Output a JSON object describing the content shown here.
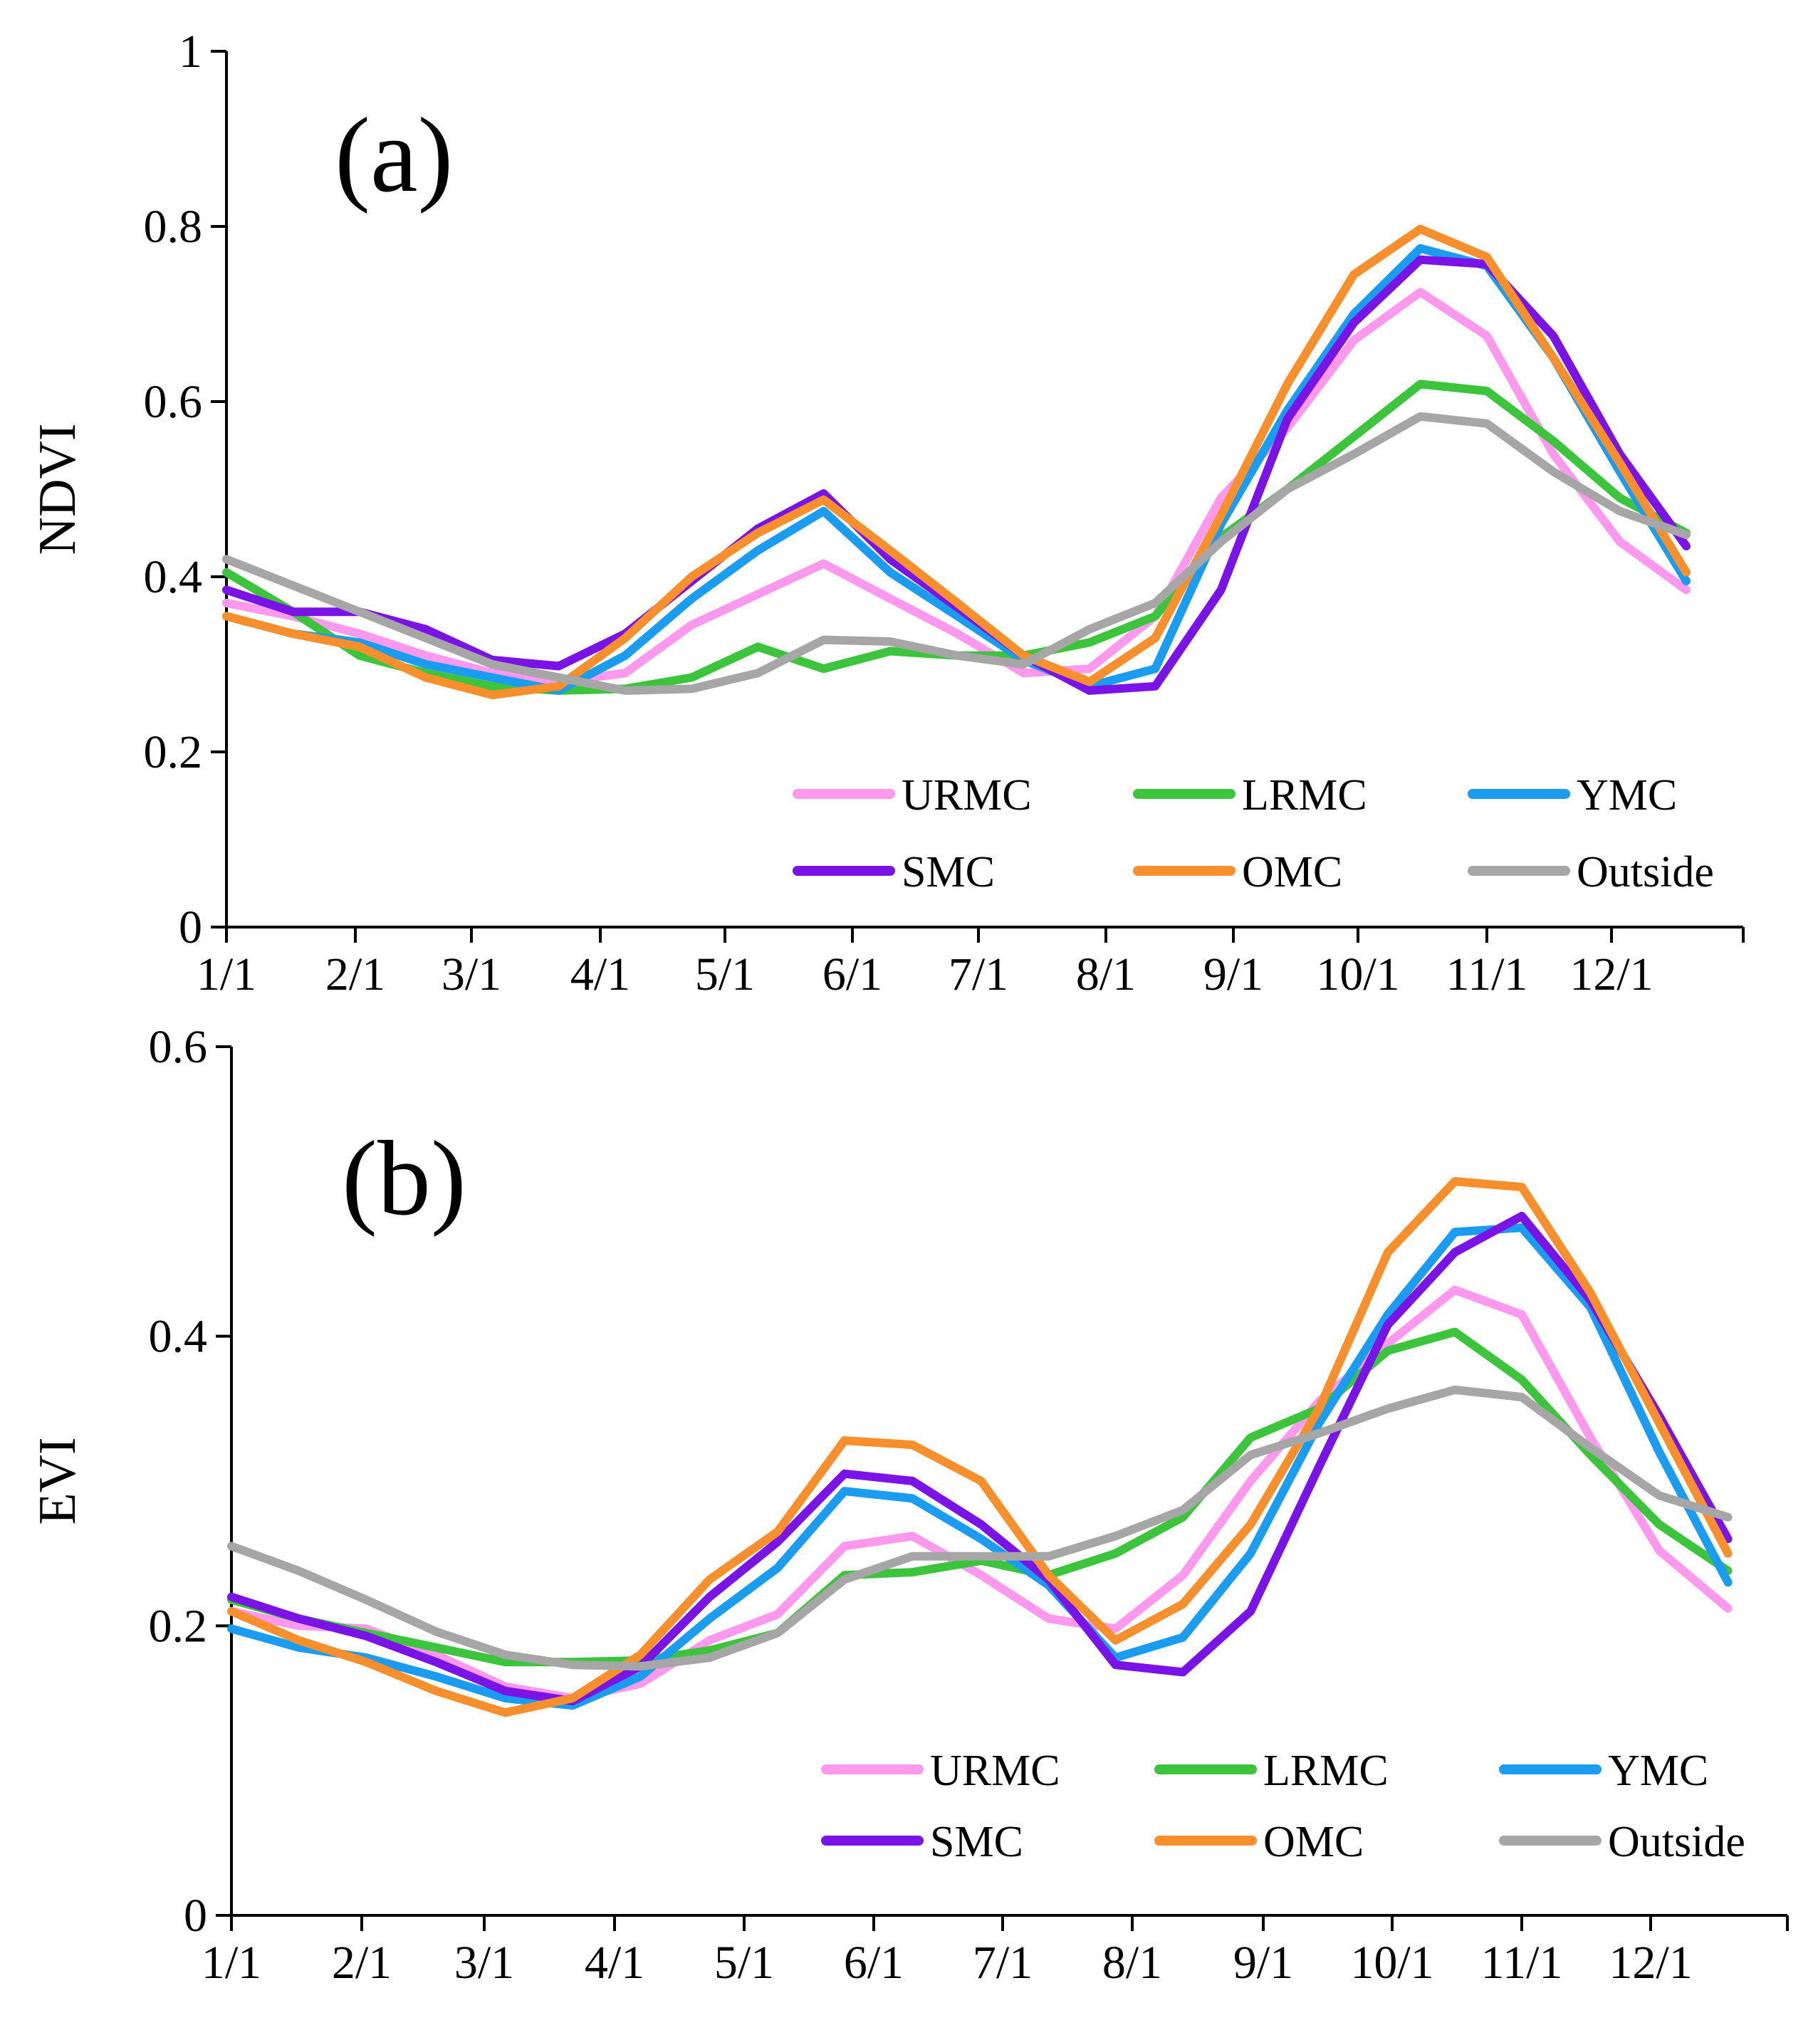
{
  "chart_data": [
    {
      "type": "line",
      "panel_label": "(a)",
      "ylabel": "NDVI",
      "xlabel": "",
      "ylim": [
        0,
        1
      ],
      "yticks": [
        "0",
        "0.2",
        "0.4",
        "0.6",
        "0.8",
        "1"
      ],
      "yticks_values": [
        0,
        0.2,
        0.4,
        0.6,
        0.8,
        1
      ],
      "xticks": [
        "1/1",
        "2/1",
        "3/1",
        "4/1",
        "5/1",
        "6/1",
        "7/1",
        "8/1",
        "9/1",
        "10/1",
        "11/1",
        "12/1"
      ],
      "x_day_of_year": [
        1,
        17,
        33,
        49,
        65,
        81,
        97,
        113,
        129,
        145,
        161,
        177,
        193,
        209,
        225,
        241,
        257,
        273,
        289,
        305,
        321,
        337,
        353
      ],
      "legend_position": "bottom-right",
      "grid": false,
      "series": [
        {
          "name": "URMC",
          "color": "#ff99ee",
          "values": [
            0.37,
            0.355,
            0.335,
            0.31,
            0.29,
            0.28,
            0.29,
            0.345,
            0.38,
            0.415,
            0.375,
            0.335,
            0.29,
            0.295,
            0.355,
            0.49,
            0.57,
            0.67,
            0.725,
            0.675,
            0.54,
            0.44,
            0.385
          ]
        },
        {
          "name": "LRMC",
          "color": "#3dc43d",
          "values": [
            0.405,
            0.36,
            0.31,
            0.29,
            0.275,
            0.27,
            0.272,
            0.285,
            0.32,
            0.295,
            0.315,
            0.31,
            0.31,
            0.325,
            0.355,
            0.445,
            0.5,
            0.56,
            0.62,
            0.612,
            0.555,
            0.49,
            0.45
          ]
        },
        {
          "name": "YMC",
          "color": "#1a9cf0",
          "values": [
            0.355,
            0.335,
            0.325,
            0.3,
            0.285,
            0.27,
            0.31,
            0.375,
            0.43,
            0.475,
            0.405,
            0.355,
            0.305,
            0.275,
            0.295,
            0.46,
            0.59,
            0.7,
            0.775,
            0.755,
            0.65,
            0.52,
            0.395
          ]
        },
        {
          "name": "SMC",
          "color": "#7a14e6",
          "values": [
            0.385,
            0.36,
            0.36,
            0.34,
            0.305,
            0.298,
            0.335,
            0.395,
            0.455,
            0.495,
            0.42,
            0.365,
            0.31,
            0.27,
            0.275,
            0.385,
            0.58,
            0.69,
            0.762,
            0.757,
            0.675,
            0.54,
            0.435
          ]
        },
        {
          "name": "OMC",
          "color": "#f7902c",
          "values": [
            0.355,
            0.335,
            0.32,
            0.285,
            0.265,
            0.275,
            0.33,
            0.4,
            0.45,
            0.488,
            0.43,
            0.37,
            0.31,
            0.28,
            0.33,
            0.47,
            0.62,
            0.745,
            0.797,
            0.765,
            0.65,
            0.53,
            0.405
          ]
        },
        {
          "name": "Outside",
          "color": "#a6a6a6",
          "values": [
            0.42,
            0.39,
            0.36,
            0.33,
            0.3,
            0.285,
            0.27,
            0.272,
            0.29,
            0.328,
            0.326,
            0.31,
            0.3,
            0.34,
            0.37,
            0.44,
            0.5,
            0.54,
            0.583,
            0.575,
            0.52,
            0.475,
            0.448
          ]
        }
      ]
    },
    {
      "type": "line",
      "panel_label": "(b)",
      "ylabel": "EVI",
      "xlabel": "",
      "ylim": [
        0,
        0.6
      ],
      "yticks": [
        "0",
        "0.2",
        "0.4",
        "0.6"
      ],
      "yticks_values": [
        0,
        0.2,
        0.4,
        0.6
      ],
      "xticks": [
        "1/1",
        "2/1",
        "3/1",
        "4/1",
        "5/1",
        "6/1",
        "7/1",
        "8/1",
        "9/1",
        "10/1",
        "11/1",
        "12/1"
      ],
      "x_day_of_year": [
        1,
        17,
        33,
        49,
        65,
        81,
        97,
        113,
        129,
        145,
        161,
        177,
        193,
        209,
        225,
        241,
        257,
        273,
        289,
        305,
        321,
        337,
        353
      ],
      "legend_position": "bottom-right",
      "grid": false,
      "series": [
        {
          "name": "URMC",
          "color": "#ff99ee",
          "values": [
            0.21,
            0.2,
            0.198,
            0.18,
            0.158,
            0.15,
            0.16,
            0.19,
            0.208,
            0.255,
            0.262,
            0.235,
            0.205,
            0.198,
            0.235,
            0.3,
            0.355,
            0.395,
            0.432,
            0.415,
            0.33,
            0.252,
            0.212
          ]
        },
        {
          "name": "LRMC",
          "color": "#3dc43d",
          "values": [
            0.218,
            0.205,
            0.195,
            0.185,
            0.175,
            0.175,
            0.176,
            0.183,
            0.195,
            0.235,
            0.237,
            0.245,
            0.235,
            0.25,
            0.275,
            0.33,
            0.35,
            0.39,
            0.403,
            0.37,
            0.318,
            0.27,
            0.238
          ]
        },
        {
          "name": "YMC",
          "color": "#1a9cf0",
          "values": [
            0.198,
            0.185,
            0.178,
            0.165,
            0.15,
            0.145,
            0.165,
            0.205,
            0.24,
            0.293,
            0.288,
            0.26,
            0.228,
            0.178,
            0.192,
            0.25,
            0.34,
            0.415,
            0.472,
            0.475,
            0.42,
            0.32,
            0.23
          ]
        },
        {
          "name": "SMC",
          "color": "#7a14e6",
          "values": [
            0.22,
            0.205,
            0.193,
            0.175,
            0.155,
            0.148,
            0.172,
            0.22,
            0.258,
            0.305,
            0.3,
            0.27,
            0.232,
            0.173,
            0.168,
            0.21,
            0.31,
            0.408,
            0.458,
            0.483,
            0.425,
            0.345,
            0.26
          ]
        },
        {
          "name": "OMC",
          "color": "#f7902c",
          "values": [
            0.21,
            0.19,
            0.175,
            0.155,
            0.14,
            0.15,
            0.18,
            0.232,
            0.265,
            0.328,
            0.325,
            0.3,
            0.235,
            0.19,
            0.215,
            0.27,
            0.35,
            0.458,
            0.507,
            0.503,
            0.43,
            0.34,
            0.25
          ]
        },
        {
          "name": "Outside",
          "color": "#a6a6a6",
          "values": [
            0.255,
            0.238,
            0.218,
            0.196,
            0.18,
            0.173,
            0.172,
            0.178,
            0.195,
            0.232,
            0.248,
            0.248,
            0.248,
            0.262,
            0.28,
            0.318,
            0.333,
            0.35,
            0.363,
            0.358,
            0.323,
            0.29,
            0.275
          ]
        }
      ]
    }
  ]
}
